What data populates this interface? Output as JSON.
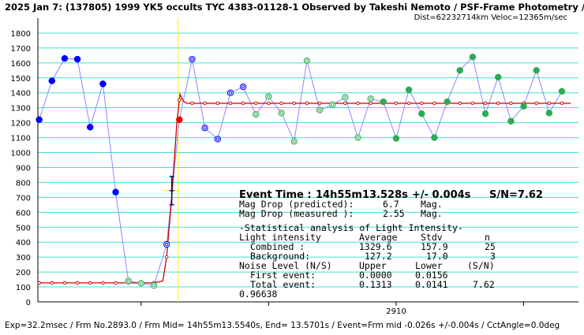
{
  "header": {
    "line1": "2025 Jan 7: (137805) 1999 YK5 occults TYC 4383-01128-1 Observed by Takeshi Nemoto / PSF-Frame Photometry /",
    "line2": "Dist=62232714km Veloc=12365m/sec"
  },
  "annotation": {
    "event_time_label": "Event Time :",
    "event_time": "14h55m13.528s",
    "event_err": "+/- 0.004s",
    "snr": "S/N=7.62",
    "mag_drop_pred_label": "Mag Drop (predicted):",
    "mag_drop_pred": "6.7",
    "mag_drop_meas_label": "Mag Drop (measured ):",
    "mag_drop_meas": "2.55",
    "mag_unit": "Mag.",
    "stats_title": "-Statistical analysis of Light Intensity-",
    "stats_header": {
      "label": "Light intensity",
      "c1": "Average",
      "c2": "Stdv",
      "c3": "n"
    },
    "row_combined": {
      "label": "Combined  :",
      "c1": "1329.6",
      "c2": "157.9",
      "c3": "25"
    },
    "row_background": {
      "label": "Background:",
      "c1": "127.2",
      "c2": "17.0",
      "c3": "3"
    },
    "noise_header": {
      "label": "Noise Level (N/S)",
      "c1": "Upper",
      "c2": "Lower",
      "c3": "(S/N)"
    },
    "row_first": {
      "label": "First event:",
      "c1": "0.0000",
      "c2": "0.0156",
      "c3": ""
    },
    "row_total": {
      "label": "Total event:",
      "c1": "0.1313",
      "c2": "0.0141",
      "c3": "7.62"
    },
    "corr": "0.96638"
  },
  "footer": "Exp=32.2msec / Frm No.2893.0 / Frm Mid= 14h55m13.5540s, End= 13.5701s / Event=Frm mid -0.026s +/-0.004s / CctAngle=0.0deg",
  "colors": {
    "axis": "#000000",
    "grid": "#40e0d0",
    "connector": "#8888ff",
    "model": "#cc0000",
    "event_marker": "#ffee00",
    "blue_point": "#0000ff",
    "green_point": "#2eaa55",
    "error_bar": "#00008b",
    "red_point": "#ee0000"
  },
  "chart_data": {
    "type": "scatter",
    "title": "",
    "xlabel": "",
    "ylabel": "",
    "ylim": [
      0,
      1900
    ],
    "yticks": [
      0,
      100,
      200,
      300,
      400,
      500,
      600,
      700,
      800,
      900,
      1000,
      1100,
      1200,
      1300,
      1400,
      1500,
      1600,
      1700,
      1800
    ],
    "xlim": [
      2881.9,
      2924.3
    ],
    "xtick_labels": [
      {
        "x": 2910,
        "label": "2910"
      }
    ],
    "xtick_marks": [
      2890,
      2900,
      2910,
      2920
    ],
    "event_x": 2892.9,
    "points": [
      {
        "x": 2882,
        "y": 1220,
        "style": "blue"
      },
      {
        "x": 2883,
        "y": 1480,
        "style": "blue"
      },
      {
        "x": 2884,
        "y": 1630,
        "style": "blue"
      },
      {
        "x": 2885,
        "y": 1625,
        "style": "blue"
      },
      {
        "x": 2886,
        "y": 1170,
        "style": "blue"
      },
      {
        "x": 2887,
        "y": 1460,
        "style": "blue"
      },
      {
        "x": 2888,
        "y": 735,
        "style": "blue"
      },
      {
        "x": 2889,
        "y": 140,
        "style": "green-open"
      },
      {
        "x": 2890,
        "y": 125,
        "style": "green-open"
      },
      {
        "x": 2891,
        "y": 110,
        "style": "green-open"
      },
      {
        "x": 2892,
        "y": 385,
        "style": "blue-open"
      },
      {
        "x": 2893,
        "y": 1220,
        "style": "red"
      },
      {
        "x": 2894,
        "y": 1625,
        "style": "blue-open"
      },
      {
        "x": 2895,
        "y": 1165,
        "style": "blue-open"
      },
      {
        "x": 2896,
        "y": 1090,
        "style": "blue-open"
      },
      {
        "x": 2897,
        "y": 1400,
        "style": "blue-open"
      },
      {
        "x": 2898,
        "y": 1440,
        "style": "blue-open"
      },
      {
        "x": 2899,
        "y": 1255,
        "style": "green-open"
      },
      {
        "x": 2900,
        "y": 1375,
        "style": "green-open"
      },
      {
        "x": 2901,
        "y": 1265,
        "style": "green-open"
      },
      {
        "x": 2902,
        "y": 1075,
        "style": "green-open"
      },
      {
        "x": 2903,
        "y": 1615,
        "style": "green-open"
      },
      {
        "x": 2904,
        "y": 1285,
        "style": "green-open"
      },
      {
        "x": 2905,
        "y": 1320,
        "style": "green-open"
      },
      {
        "x": 2906,
        "y": 1370,
        "style": "green-open"
      },
      {
        "x": 2907,
        "y": 1100,
        "style": "green-open"
      },
      {
        "x": 2908,
        "y": 1360,
        "style": "green-open"
      },
      {
        "x": 2909,
        "y": 1340,
        "style": "green"
      },
      {
        "x": 2910,
        "y": 1095,
        "style": "green"
      },
      {
        "x": 2911,
        "y": 1420,
        "style": "green"
      },
      {
        "x": 2912,
        "y": 1260,
        "style": "green"
      },
      {
        "x": 2913,
        "y": 1100,
        "style": "green"
      },
      {
        "x": 2914,
        "y": 1340,
        "style": "green"
      },
      {
        "x": 2915,
        "y": 1550,
        "style": "green"
      },
      {
        "x": 2916,
        "y": 1640,
        "style": "green"
      },
      {
        "x": 2917,
        "y": 1260,
        "style": "green"
      },
      {
        "x": 2918,
        "y": 1505,
        "style": "green"
      },
      {
        "x": 2919,
        "y": 1210,
        "style": "green"
      },
      {
        "x": 2920,
        "y": 1310,
        "style": "green"
      },
      {
        "x": 2921,
        "y": 1550,
        "style": "green"
      },
      {
        "x": 2922,
        "y": 1265,
        "style": "green"
      },
      {
        "x": 2923,
        "y": 1410,
        "style": "green"
      }
    ],
    "model_curve": [
      [
        2882,
        127
      ],
      [
        2891,
        127
      ],
      [
        2891.7,
        140
      ],
      [
        2892.0,
        300
      ],
      [
        2892.4,
        700
      ],
      [
        2892.8,
        1200
      ],
      [
        2893.05,
        1390
      ],
      [
        2893.3,
        1345
      ],
      [
        2893.6,
        1330
      ],
      [
        2923.7,
        1330
      ]
    ],
    "model_markers_x": [
      2882,
      2883,
      2884,
      2885,
      2886,
      2887,
      2888,
      2889,
      2890,
      2891,
      2892,
      2893,
      2894,
      2895,
      2896,
      2897,
      2898,
      2899,
      2900,
      2901,
      2902,
      2903,
      2904,
      2905,
      2906,
      2907,
      2908,
      2909,
      2910,
      2911,
      2912,
      2913,
      2914,
      2915,
      2916,
      2917,
      2918,
      2919,
      2920,
      2921,
      2922,
      2923
    ],
    "event_errorbar": {
      "x": 2892.4,
      "y": 745,
      "ylow": 650,
      "yhigh": 840
    }
  }
}
